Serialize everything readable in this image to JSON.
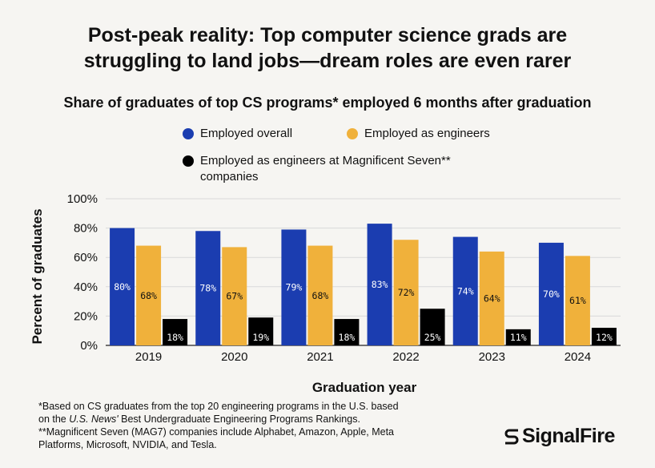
{
  "headline": {
    "line1": "Post-peak reality: Top computer science grads are",
    "line2": "struggling to land jobs—dream roles are even rarer"
  },
  "colors": {
    "employed_overall": "#1b3db0",
    "employed_engineers": "#f0b13b",
    "employed_mag7": "#000000",
    "background": "#f6f5f2",
    "grid": "#d9d9d9"
  },
  "chart_data": {
    "type": "bar",
    "title": "Share of graduates of top CS programs* employed 6 months after graduation",
    "xlabel": "Graduation year",
    "ylabel": "Percent of graduates",
    "ylim": [
      0,
      100
    ],
    "yticks": [
      "0%",
      "20%",
      "40%",
      "60%",
      "80%",
      "100%"
    ],
    "categories": [
      "2019",
      "2020",
      "2021",
      "2022",
      "2023",
      "2024"
    ],
    "series": [
      {
        "name": "Employed overall",
        "values": [
          80,
          78,
          79,
          83,
          74,
          70
        ],
        "labels": [
          "80%",
          "78%",
          "79%",
          "83%",
          "74%",
          "70%"
        ]
      },
      {
        "name": "Employed as engineers",
        "values": [
          68,
          67,
          68,
          72,
          64,
          61
        ],
        "labels": [
          "68%",
          "67%",
          "68%",
          "72%",
          "64%",
          "61%"
        ]
      },
      {
        "name": "Employed as engineers at Magnificent Seven** companies",
        "name_line1": "Employed as engineers at Magnificent Seven**",
        "name_line2": "companies",
        "values": [
          18,
          19,
          18,
          25,
          11,
          12
        ],
        "labels": [
          "18%",
          "19%",
          "18%",
          "25%",
          "11%",
          "12%"
        ]
      }
    ],
    "grid": true,
    "legend": "top"
  },
  "footnotes": {
    "line1": "*Based on CS graduates from the top 20 engineering programs in the U.S. based",
    "line2_before": "on the ",
    "line2_italic": "U.S. News'",
    "line2_after": " Best Undergraduate Engineering Programs Rankings.",
    "line3": "**Magnificent Seven (MAG7) companies include Alphabet, Amazon, Apple, Meta",
    "line4": "Platforms, Microsoft, NVIDIA, and Tesla."
  },
  "brand": {
    "name": "SignalFire",
    "icon": "signalfire-s-icon"
  }
}
